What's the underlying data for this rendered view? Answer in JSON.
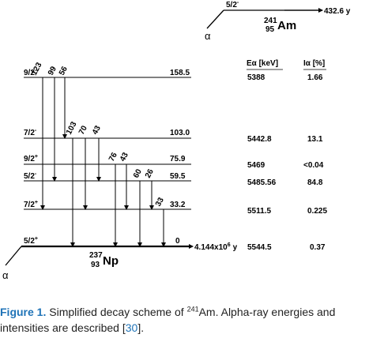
{
  "parent": {
    "spin": "5/2",
    "parity": "-",
    "mass": "241",
    "z": "95",
    "symbol": "Am",
    "halflife": "432.6 y"
  },
  "daughter": {
    "mass": "237",
    "z": "93",
    "symbol": "Np",
    "halflife": "4.144x10",
    "halflife_exp": "6",
    "halflife_unit": "y"
  },
  "alpha_symbol": "α",
  "table_headers": {
    "energy": "Eα [keV]",
    "intensity": "Iα [%]"
  },
  "levels": [
    {
      "spin": "9/2",
      "parity": "-",
      "energy": "158.5",
      "ealpha": "5388",
      "ialpha": "1.66"
    },
    {
      "spin": "7/2",
      "parity": "-",
      "energy": "103.0",
      "ealpha": "5442.8",
      "ialpha": "13.1"
    },
    {
      "spin": "9/2",
      "parity": "+",
      "energy": "75.9",
      "ealpha": "5469",
      "ialpha": "<0.04"
    },
    {
      "spin": "5/2",
      "parity": "-",
      "energy": "59.5",
      "ealpha": "5485.56",
      "ialpha": "84.8"
    },
    {
      "spin": "7/2",
      "parity": "+",
      "energy": "33.2",
      "ealpha": "5511.5",
      "ialpha": "0.225"
    },
    {
      "spin": "5/2",
      "parity": "+",
      "energy": "0",
      "ealpha": "5544.5",
      "ialpha": "0.37"
    }
  ],
  "gammas": [
    "123",
    "99",
    "56",
    "103",
    "70",
    "43",
    "76",
    "43",
    "60",
    "26",
    "33"
  ],
  "caption": {
    "label": "Figure 1.",
    "text_before": " Simplified decay scheme of ",
    "isotope_mass": "241",
    "isotope": "Am",
    "text_after": ". Alpha-ray energies and intensities are described [",
    "ref": "30",
    "text_end": "]."
  }
}
